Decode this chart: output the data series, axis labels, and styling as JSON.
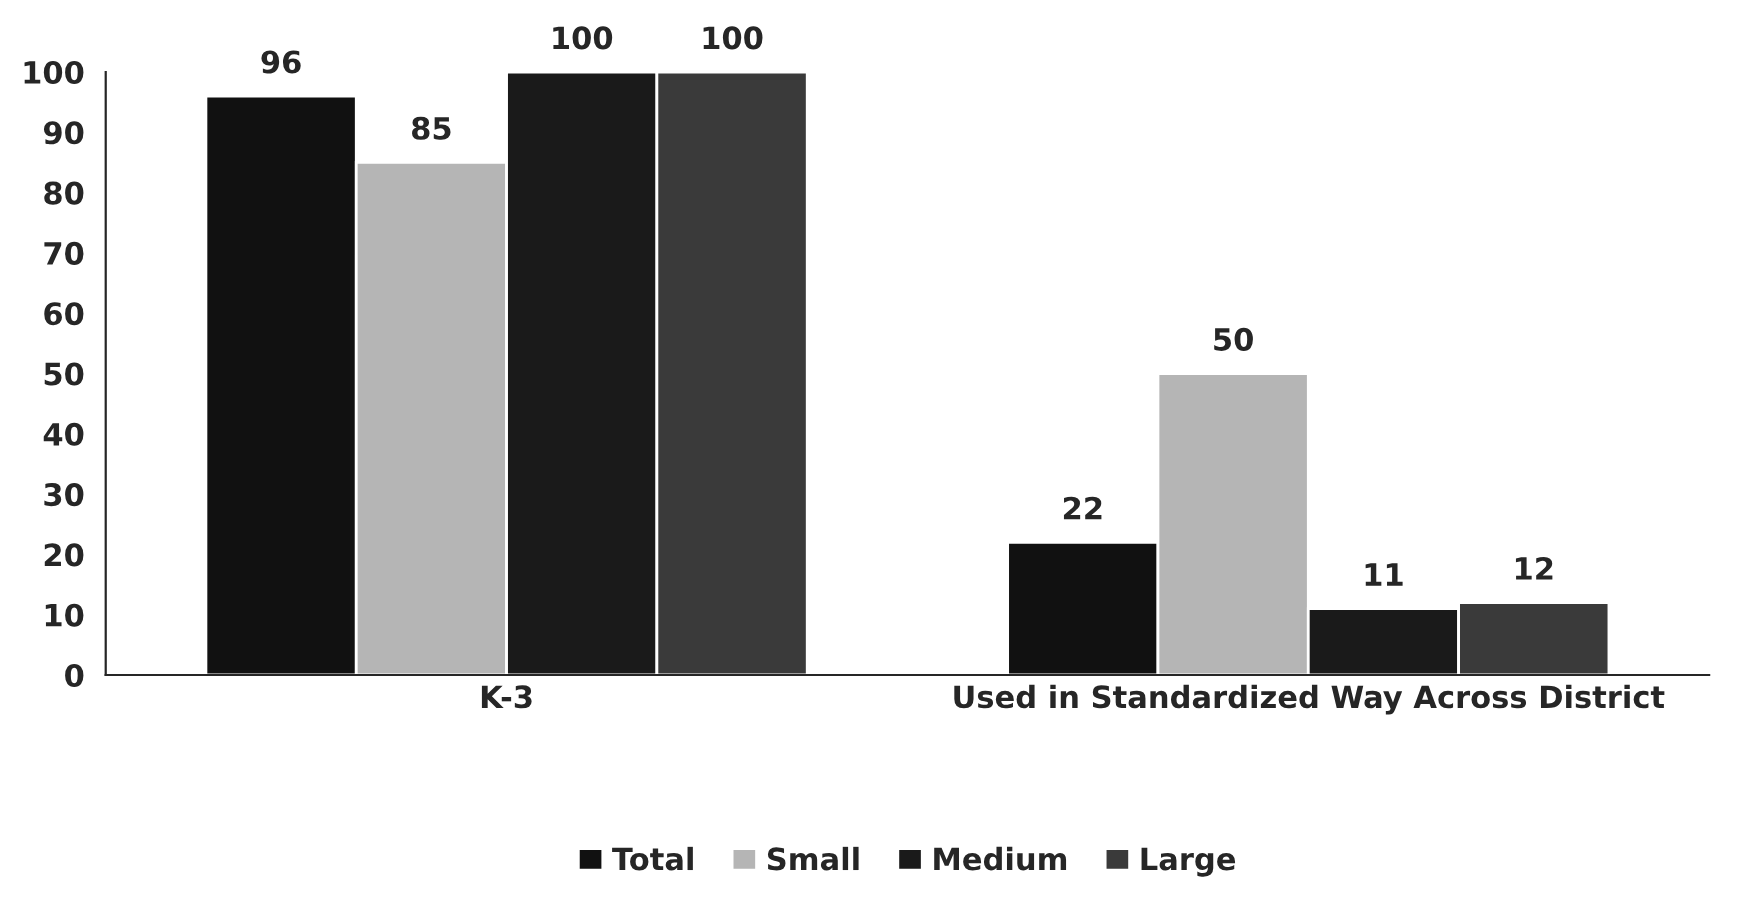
{
  "chart_data": {
    "type": "bar",
    "categories": [
      "K-3",
      "Used in Standardized Way Across District"
    ],
    "series": [
      {
        "name": "Total",
        "color": "#111111",
        "values": [
          96,
          22
        ]
      },
      {
        "name": "Small",
        "color": "#b5b5b5",
        "values": [
          85,
          50
        ]
      },
      {
        "name": "Medium",
        "color": "#1a1a1a",
        "values": [
          100,
          11
        ]
      },
      {
        "name": "Large",
        "color": "#3a3a3a",
        "values": [
          100,
          12
        ]
      }
    ],
    "ylim": [
      0,
      100
    ],
    "yticks": [
      0,
      10,
      20,
      30,
      40,
      50,
      60,
      70,
      80,
      90,
      100
    ],
    "data_labels": true,
    "legend": "bottom",
    "grid": false
  }
}
